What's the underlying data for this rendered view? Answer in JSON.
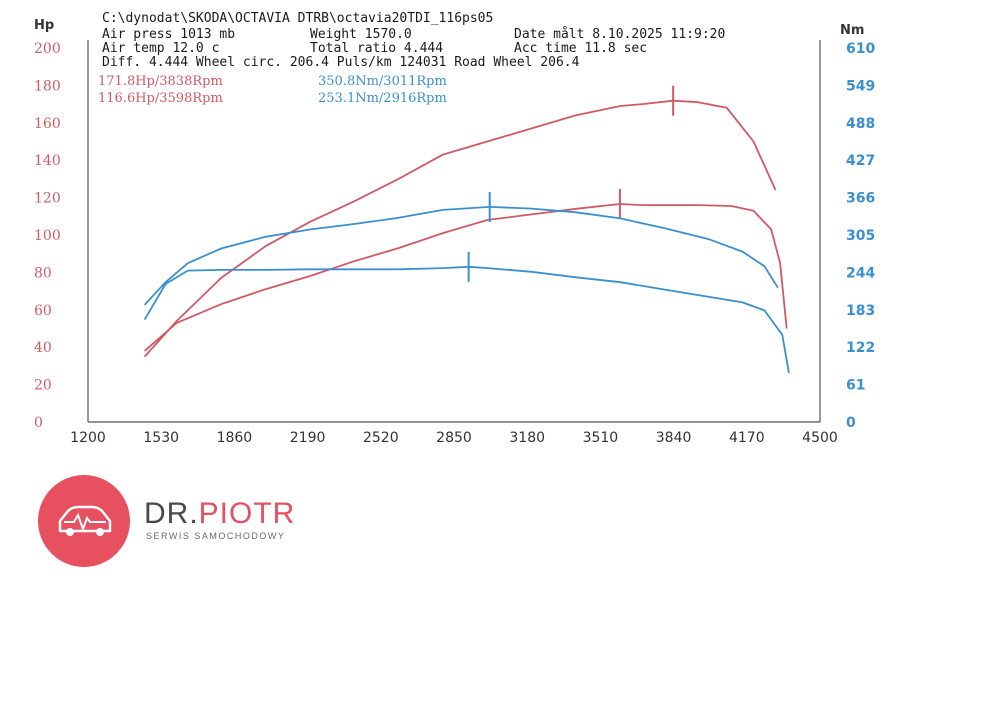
{
  "header": {
    "path": "C:\\dynodat\\SKODA\\OCTAVIA DTRB\\octavia20TDI_116ps05",
    "air_press": "Air press  1013 mb",
    "weight": "Weight   1570.0",
    "date": "Date målt 8.10.2025 11:9:20",
    "air_temp": "Air temp  12.0 c",
    "total_ratio": "Total ratio 4.444",
    "acc_time": "Acc time  11.8 sec",
    "diff_line": "Diff.   4.444  Wheel circ. 206.4  Puls/km  124031  Road Wheel 206.4"
  },
  "peaks": {
    "hp_1": "171.8Hp/3838Rpm",
    "hp_2": "116.6Hp/3598Rpm",
    "nm_1": "350.8Nm/3011Rpm",
    "nm_2": "253.1Nm/2916Rpm"
  },
  "logo": {
    "name_part1": "DR.",
    "name_part2": "PIOTR",
    "subtitle": "SERWIS SAMOCHODOWY"
  },
  "colors": {
    "power": "#cf5a66",
    "torque": "#3a8fcf",
    "axis": "#555555",
    "brand": "#e6505f"
  },
  "chart_data": {
    "type": "line",
    "ylabel_left": "Hp",
    "ylabel_right": "Nm",
    "xlim": [
      1200,
      4500
    ],
    "x_ticks": [
      1200,
      1530,
      1860,
      2190,
      2520,
      2850,
      3180,
      3510,
      3840,
      4170,
      4500
    ],
    "ylim_left": [
      0,
      200
    ],
    "y_ticks_left": [
      0,
      20,
      40,
      60,
      80,
      100,
      120,
      140,
      160,
      180,
      200
    ],
    "ylim_right": [
      0,
      610
    ],
    "y_ticks_right": [
      0,
      61,
      122,
      183,
      244,
      305,
      366,
      427,
      488,
      549,
      610
    ],
    "grid": false,
    "series": [
      {
        "axis": "left",
        "color": "#cf5a66",
        "x": [
          1455,
          1600,
          1800,
          2000,
          2200,
          2400,
          2600,
          2800,
          3000,
          3200,
          3400,
          3600,
          3700,
          3838,
          3950,
          4080,
          4200,
          4300
        ],
        "y": [
          35,
          54,
          77,
          94,
          107,
          118,
          130,
          143,
          150,
          157,
          164,
          169,
          170,
          171.8,
          171,
          168,
          150,
          124
        ],
        "marker_x": 3838,
        "marker_y": 171.8
      },
      {
        "axis": "left",
        "color": "#cf5a66",
        "x": [
          1455,
          1600,
          1800,
          2000,
          2200,
          2400,
          2600,
          2800,
          3000,
          3200,
          3400,
          3598,
          3700,
          3800,
          3950,
          4100,
          4200,
          4280,
          4320,
          4350
        ],
        "y": [
          38,
          53,
          63,
          71,
          78,
          86,
          93,
          101,
          108,
          111,
          114,
          116.6,
          116,
          116,
          116,
          115.5,
          113,
          103,
          85,
          50
        ],
        "marker_x": 3598,
        "marker_y": 116.6
      },
      {
        "axis": "right",
        "color": "#3a8fcf",
        "x": [
          1455,
          1550,
          1650,
          1800,
          2000,
          2200,
          2400,
          2600,
          2800,
          3011,
          3200,
          3400,
          3600,
          3800,
          4000,
          4150,
          4250,
          4310
        ],
        "y": [
          191,
          228,
          259,
          283,
          302,
          314,
          323,
          333,
          346,
          350.8,
          348,
          342,
          332,
          316,
          298,
          278,
          254,
          219
        ],
        "marker_x": 3011,
        "marker_y": 350.8
      },
      {
        "axis": "right",
        "color": "#3a8fcf",
        "x": [
          1455,
          1550,
          1650,
          1800,
          2000,
          2200,
          2400,
          2600,
          2800,
          2916,
          3000,
          3200,
          3400,
          3600,
          3800,
          4000,
          4150,
          4250,
          4330,
          4360
        ],
        "y": [
          167,
          225,
          247,
          248,
          248,
          249,
          249,
          249,
          251,
          253.1,
          251,
          245,
          236,
          228,
          216,
          204,
          195,
          182,
          142,
          80
        ],
        "marker_x": 2916,
        "marker_y": 253.1
      }
    ]
  }
}
